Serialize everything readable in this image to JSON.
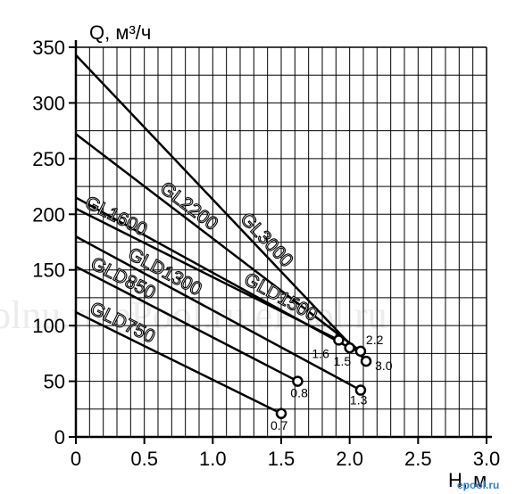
{
  "watermark": "olnu.ru ePool.ru   ePool.ru",
  "logo": "epool.ru",
  "chart_data": {
    "type": "line",
    "ylabel": "Q, м³/ч",
    "xlabel": "H, м",
    "xlim": [
      0,
      3.0
    ],
    "ylim": [
      0,
      350
    ],
    "x_ticks": [
      "0",
      "0.5",
      "1.0",
      "1.5",
      "2.0",
      "2.5",
      "3.0"
    ],
    "y_ticks": [
      "0",
      "50",
      "100",
      "150",
      "200",
      "250",
      "300",
      "350"
    ],
    "grid": true,
    "series": [
      {
        "name": "GL3000",
        "x": [
          0,
          2.12
        ],
        "y": [
          343,
          68
        ],
        "end_label": "3.0"
      },
      {
        "name": "GL2200",
        "x": [
          0,
          2.08
        ],
        "y": [
          272,
          77
        ],
        "end_label": "2.2"
      },
      {
        "name": "GLD1500",
        "x": [
          0,
          2.0
        ],
        "y": [
          215,
          80
        ],
        "end_label": "1.5"
      },
      {
        "name": "GL1600",
        "x": [
          0,
          1.92
        ],
        "y": [
          205,
          87
        ],
        "end_label": "1.6"
      },
      {
        "name": "GLD1300",
        "x": [
          0,
          2.08
        ],
        "y": [
          180,
          42
        ],
        "end_label": "1.3"
      },
      {
        "name": "GLD850",
        "x": [
          0,
          1.62
        ],
        "y": [
          153,
          50
        ],
        "end_label": "0.8"
      },
      {
        "name": "GLD750",
        "x": [
          0,
          1.5
        ],
        "y": [
          112,
          21
        ],
        "end_label": "0.7"
      }
    ]
  }
}
